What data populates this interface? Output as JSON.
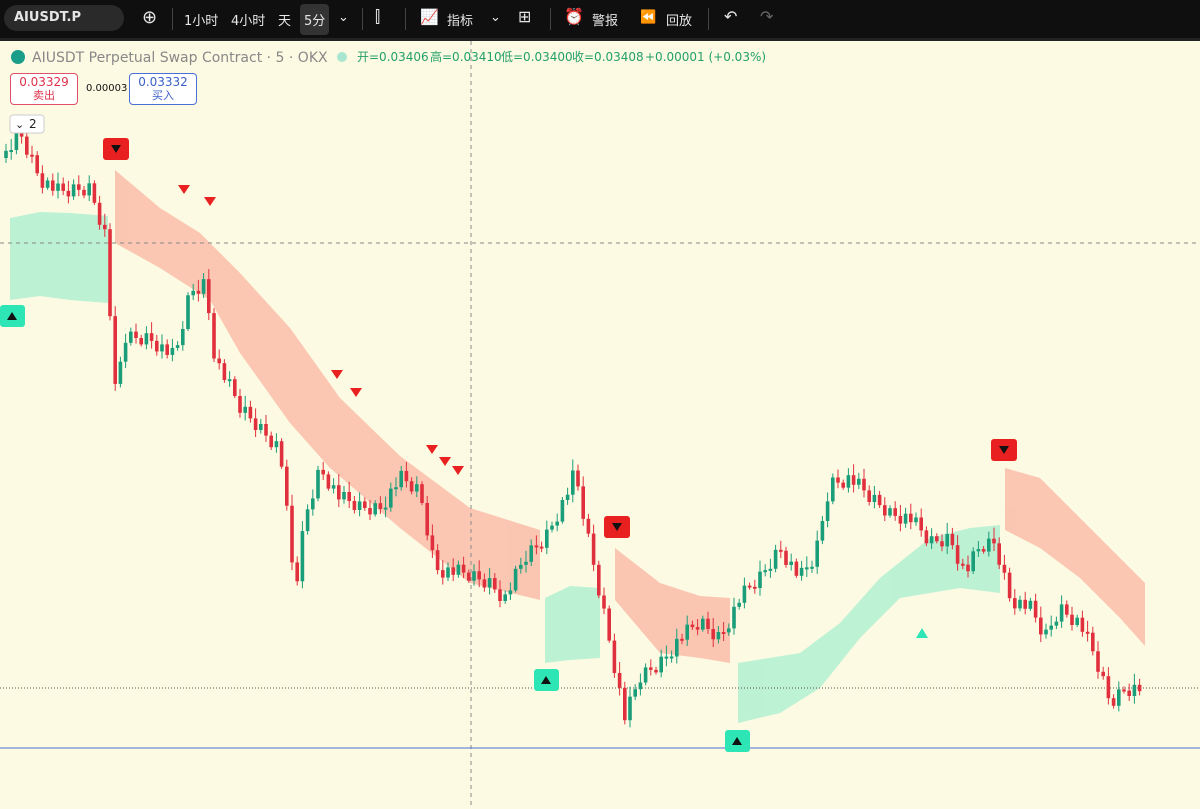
{
  "toolbar": {
    "symbol": "AIUSDT.P",
    "intervals": [
      "1小时",
      "4小时",
      "天",
      "5分"
    ],
    "indicators": "指标",
    "alerts": "警报",
    "replay": "回放"
  },
  "legend": {
    "title": "AIUSDT Perpetual Swap Contract · 5 · OKX",
    "ohlc": [
      "开=0.03406",
      "高=0.03410",
      "低=0.03400",
      "收=0.03408"
    ],
    "change": "+0.00001 (+0.03%)"
  },
  "trade": {
    "sell": {
      "price": "0.03329",
      "label": "卖出"
    },
    "spread": "0.00003",
    "buy": {
      "price": "0.03332",
      "label": "买入"
    }
  },
  "indicator_count": "2"
}
